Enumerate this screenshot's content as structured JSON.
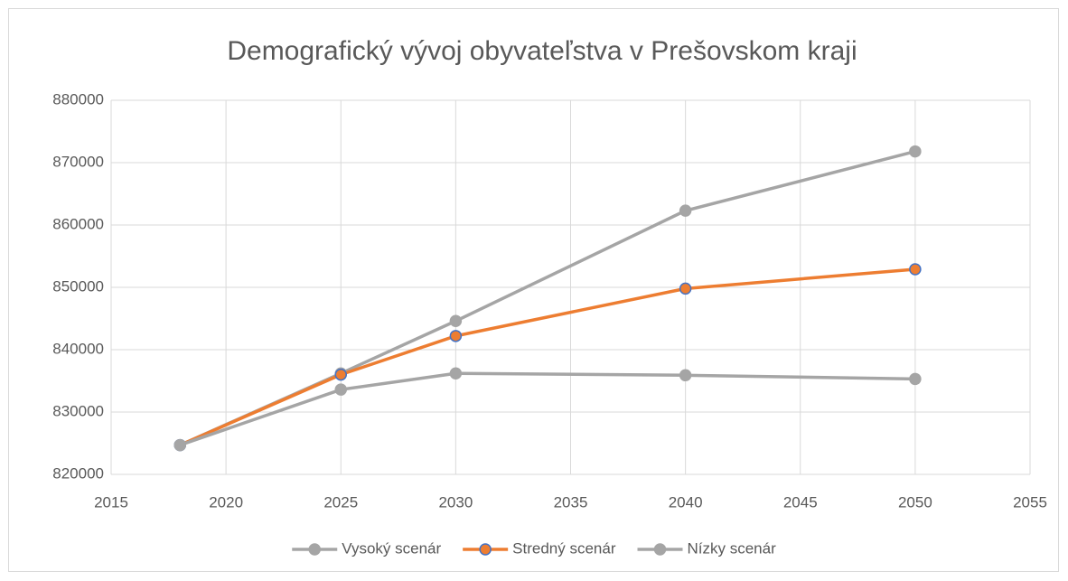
{
  "chart_data": {
    "type": "line",
    "title": "Demografický vývoj obyvateľstva v Prešovskom kraji",
    "x": [
      2018,
      2025,
      2030,
      2040,
      2050
    ],
    "series": [
      {
        "name": "Vysoký scenár",
        "color": "#a5a5a5",
        "marker_edge": "#a5a5a5",
        "values": [
          824700,
          836200,
          844600,
          862300,
          871800
        ]
      },
      {
        "name": "Stredný scenár",
        "color": "#ed7d31",
        "marker_edge": "#4472c4",
        "values": [
          824700,
          836000,
          842200,
          849800,
          852900
        ]
      },
      {
        "name": "Nízky scenár",
        "color": "#a5a5a5",
        "marker_edge": "#a5a5a5",
        "values": [
          824700,
          833600,
          836200,
          835900,
          835300
        ]
      }
    ],
    "xlim": [
      2015,
      2055
    ],
    "xticks": [
      2015,
      2020,
      2025,
      2030,
      2035,
      2040,
      2045,
      2050,
      2055
    ],
    "ylim": [
      820000,
      880000
    ],
    "yticks": [
      820000,
      830000,
      840000,
      850000,
      860000,
      870000,
      880000
    ],
    "grid": true,
    "legend": "bottom"
  }
}
